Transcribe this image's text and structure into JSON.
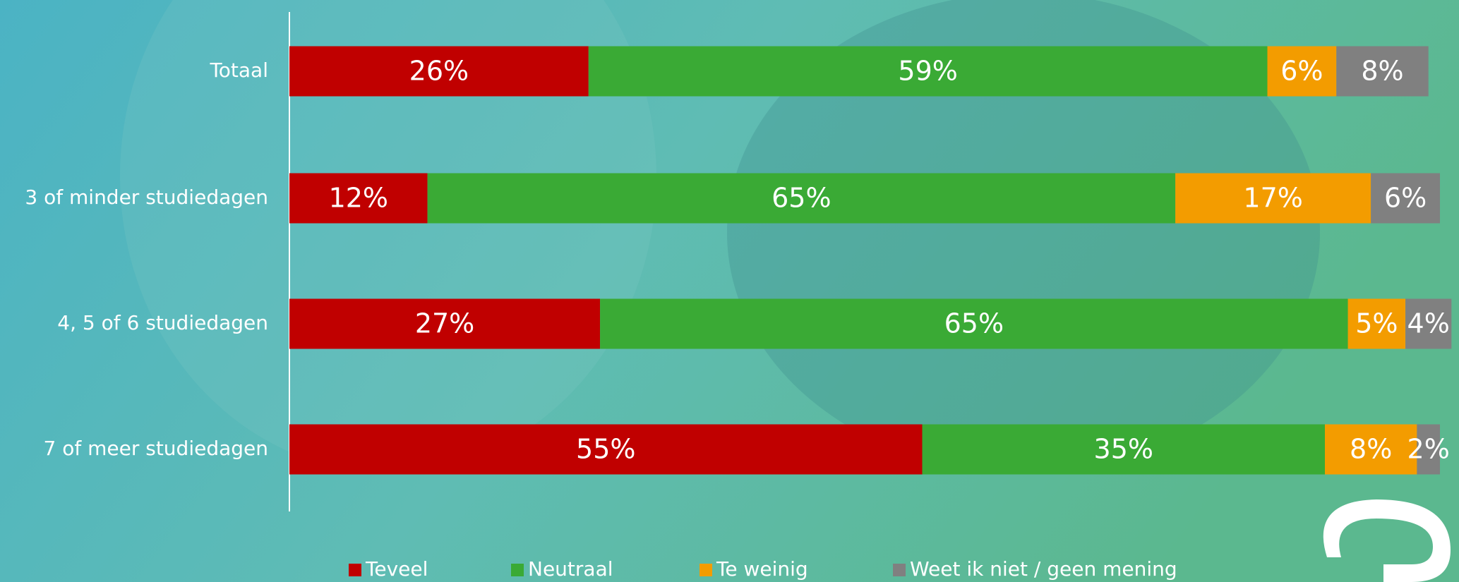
{
  "chart_data": {
    "type": "stacked-bar-horizontal",
    "categories": [
      "Totaal",
      "3 of minder studiedagen",
      "4, 5 of 6 studiedagen",
      "7 of meer studiedagen"
    ],
    "series": [
      {
        "name": "Teveel",
        "color": "#c00000",
        "values": [
          26,
          12,
          27,
          55
        ],
        "value_labels": [
          "26%",
          "12%",
          "27%",
          "55%"
        ]
      },
      {
        "name": "Neutraal",
        "color": "#3aaa35",
        "values": [
          59,
          65,
          65,
          35
        ],
        "value_labels": [
          "59%",
          "65%",
          "65%",
          "35%"
        ]
      },
      {
        "name": "Te weinig",
        "color": "#f39c00",
        "values": [
          6,
          17,
          5,
          8
        ],
        "value_labels": [
          "6%",
          "17%",
          "5%",
          "8%"
        ]
      },
      {
        "name": "Weet ik niet / geen mening",
        "color": "#808080",
        "values": [
          8,
          6,
          4,
          2
        ],
        "value_labels": [
          "8%",
          "6%",
          "4%",
          "2%"
        ]
      }
    ],
    "xlim": [
      0,
      100
    ],
    "legend": "bottom"
  }
}
